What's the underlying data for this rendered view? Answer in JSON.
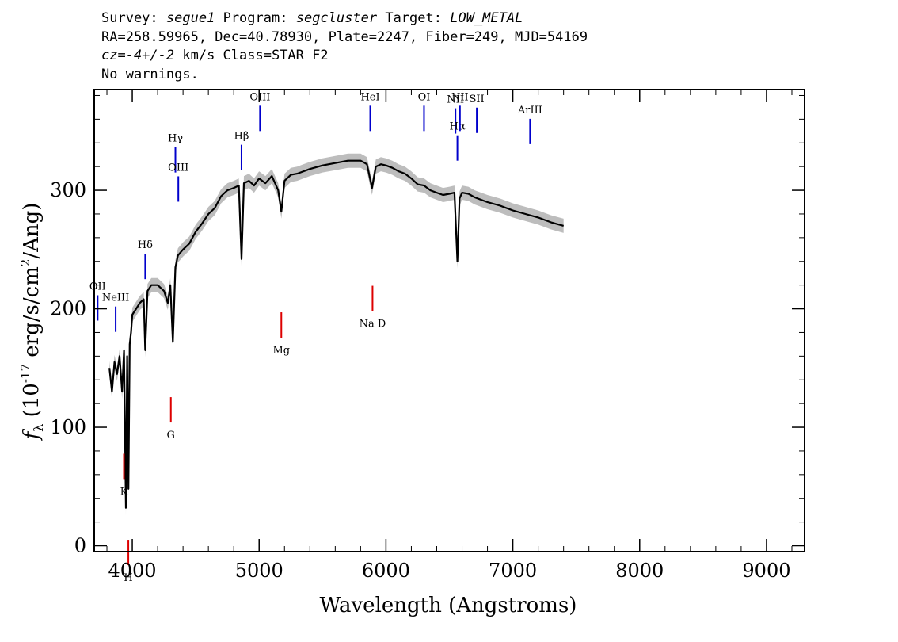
{
  "header": {
    "survey_label": "Survey:",
    "survey": "segue1",
    "program_label": "Program:",
    "program": "segcluster",
    "target_label": "Target:",
    "target": "LOW_METAL",
    "line2": "RA=258.59965, Dec=40.78930, Plate=2247, Fiber=249, MJD=54169",
    "cz_value": "cz=-4+/-2",
    "cz_rest": "km/s Class=STAR F2",
    "warnings": "No warnings."
  },
  "chart_data": {
    "type": "line",
    "xlabel": "Wavelength (Angstroms)",
    "ylabel": "f_λ (10^-17 erg/s/cm^2/Ang)",
    "xlim": [
      3700,
      9300
    ],
    "ylim": [
      -5,
      385
    ],
    "x_ticks": [
      4000,
      5000,
      6000,
      7000,
      8000,
      9000
    ],
    "y_ticks": [
      0,
      100,
      200,
      300
    ],
    "grid": false,
    "legend": "none",
    "colors": {
      "spectrum": "#000000",
      "error_band": "#bdbdbd",
      "emission": "#0000cc",
      "absorption": "#dd0000"
    },
    "series": [
      {
        "x": [
          3820,
          3840,
          3860,
          3880,
          3900,
          3920,
          3935,
          3950,
          3960,
          3970,
          3980,
          3990,
          4000,
          4030,
          4060,
          4090,
          4102,
          4120,
          4150,
          4200,
          4250,
          4280,
          4300,
          4320,
          4340,
          4360,
          4400,
          4450,
          4500,
          4550,
          4600,
          4650,
          4700,
          4750,
          4800,
          4840,
          4861,
          4880,
          4920,
          4960,
          5000,
          5050,
          5100,
          5150,
          5175,
          5200,
          5250,
          5300,
          5400,
          5500,
          5600,
          5700,
          5800,
          5850,
          5890,
          5920,
          5960,
          6000,
          6050,
          6100,
          6150,
          6200,
          6250,
          6300,
          6350,
          6400,
          6450,
          6500,
          6540,
          6563,
          6580,
          6600,
          6650,
          6700,
          6800,
          6900,
          7000,
          7100,
          7200,
          7300,
          7400
        ],
        "y": [
          150,
          130,
          155,
          145,
          160,
          130,
          165,
          32,
          160,
          48,
          170,
          180,
          195,
          200,
          205,
          208,
          165,
          215,
          220,
          220,
          215,
          205,
          220,
          172,
          235,
          245,
          250,
          255,
          265,
          272,
          280,
          285,
          295,
          300,
          302,
          304,
          242,
          306,
          308,
          304,
          310,
          306,
          312,
          300,
          282,
          308,
          313,
          314,
          318,
          321,
          323,
          325,
          325,
          322,
          302,
          320,
          322,
          321,
          319,
          316,
          314,
          310,
          305,
          304,
          300,
          298,
          296,
          297,
          298,
          240,
          293,
          298,
          297,
          294,
          290,
          287,
          283,
          280,
          277,
          273,
          270
        ]
      }
    ],
    "line_labels": [
      {
        "name": "OII",
        "x": 3727,
        "kind": "emission"
      },
      {
        "name": "NeIII",
        "x": 3869,
        "kind": "emission"
      },
      {
        "name": "Hδ",
        "x": 4102,
        "kind": "emission"
      },
      {
        "name": "Hγ",
        "x": 4340,
        "kind": "emission"
      },
      {
        "name": "OIII",
        "x": 4363,
        "kind": "emission"
      },
      {
        "name": "Hβ",
        "x": 4861,
        "kind": "emission"
      },
      {
        "name": "OIII",
        "x": 5007,
        "kind": "emission"
      },
      {
        "name": "HeI",
        "x": 5876,
        "kind": "emission"
      },
      {
        "name": "OI",
        "x": 6300,
        "kind": "emission"
      },
      {
        "name": "NII",
        "x": 6548,
        "kind": "emission"
      },
      {
        "name": "Hα",
        "x": 6563,
        "kind": "emission"
      },
      {
        "name": "NII",
        "x": 6583,
        "kind": "emission"
      },
      {
        "name": "SII",
        "x": 6716,
        "kind": "emission"
      },
      {
        "name": "ArIII",
        "x": 7136,
        "kind": "emission"
      },
      {
        "name": "K",
        "x": 3934,
        "kind": "absorption"
      },
      {
        "name": "H",
        "x": 3969,
        "kind": "absorption"
      },
      {
        "name": "G",
        "x": 4304,
        "kind": "absorption"
      },
      {
        "name": "Mg",
        "x": 5175,
        "kind": "absorption"
      },
      {
        "name": "Na D",
        "x": 5894,
        "kind": "absorption"
      }
    ]
  }
}
